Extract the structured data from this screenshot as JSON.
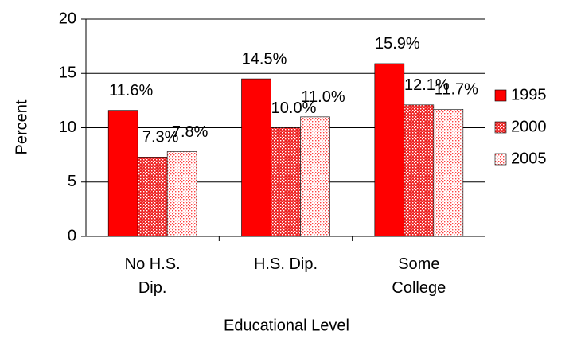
{
  "chart_data": {
    "type": "bar",
    "x_label": "Educational Level",
    "y_label": "Percent",
    "categories": [
      "No H.S. Dip.",
      "H.S. Dip.",
      "Some College"
    ],
    "series": [
      {
        "name": "1995",
        "color": "#ff0000",
        "pattern": "solid",
        "values": [
          11.6,
          14.5,
          15.9
        ],
        "value_labels": [
          "11.6%",
          "14.5%",
          "15.9%"
        ]
      },
      {
        "name": "2000",
        "color": "#ff0000",
        "pattern": "dense-dots",
        "values": [
          7.3,
          10.0,
          12.1
        ],
        "value_labels": [
          "7.3%",
          "10.0%",
          "12.1%"
        ]
      },
      {
        "name": "2005",
        "color": "#ff0000",
        "pattern": "sparse-dots",
        "values": [
          7.8,
          11.0,
          11.7
        ],
        "value_labels": [
          "7.8%",
          "11.0%",
          "11.7%"
        ]
      }
    ],
    "ylim": [
      0,
      20
    ],
    "yticks": [
      0,
      5,
      10,
      15,
      20
    ],
    "grid": true,
    "legend": "right"
  }
}
